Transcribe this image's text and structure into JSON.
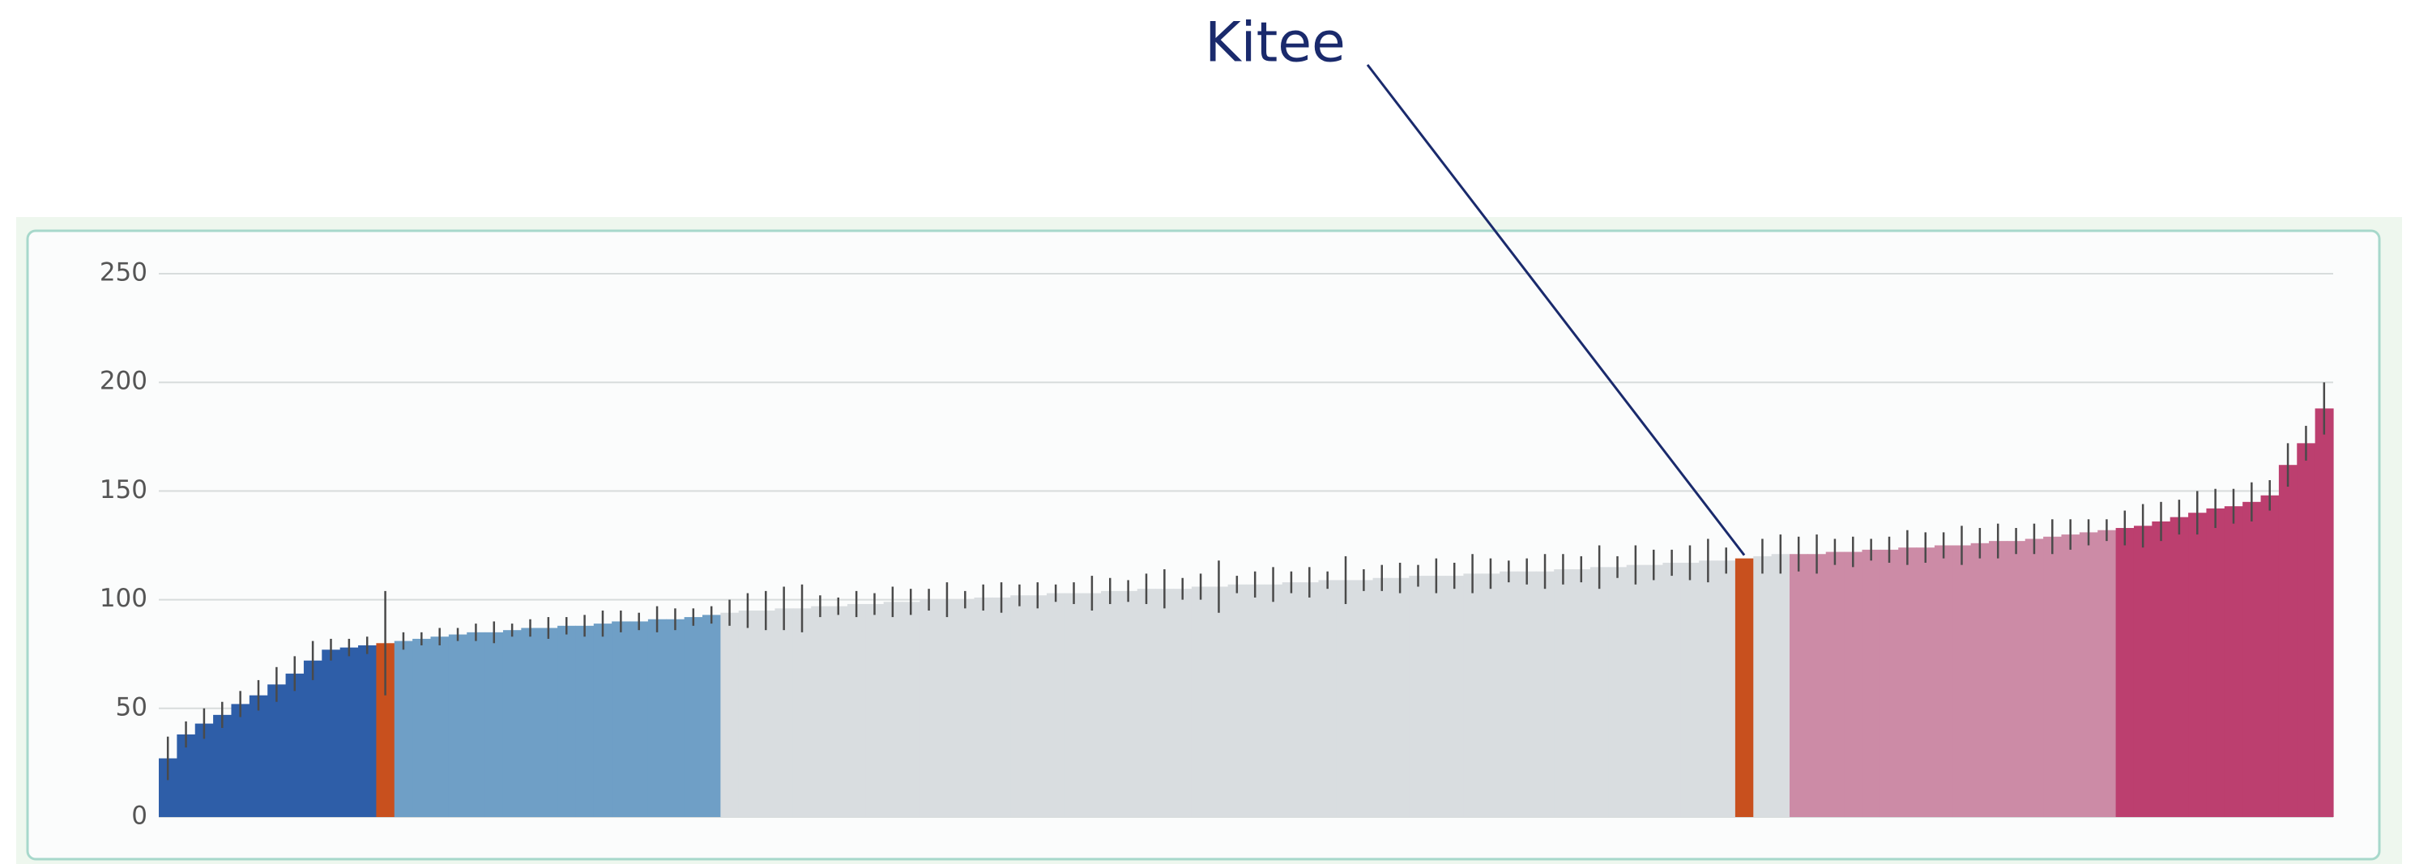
{
  "chart_data": {
    "type": "bar",
    "ylim": [
      0,
      250
    ],
    "yticks": [
      0,
      50,
      100,
      150,
      200,
      250
    ],
    "grid": true,
    "series": [
      {
        "color": "#2e5ea8",
        "values": [
          27,
          38,
          43,
          47,
          52,
          56,
          61,
          66,
          72,
          77,
          78,
          79
        ],
        "errors": [
          10,
          6,
          7,
          6,
          6,
          7,
          8,
          8,
          9,
          5,
          4,
          4
        ]
      },
      {
        "color": "#c8501e",
        "values": [
          80
        ],
        "errors": [
          24
        ]
      },
      {
        "color": "#6f9fc6",
        "values": [
          81,
          82,
          83,
          84,
          85,
          85,
          86,
          87,
          87,
          88,
          88,
          89,
          90,
          90,
          91,
          91,
          92,
          93
        ],
        "errors": [
          4,
          3,
          4,
          3,
          4,
          5,
          3,
          4,
          5,
          4,
          5,
          6,
          5,
          4,
          6,
          5,
          4,
          4
        ]
      },
      {
        "color": "#d9dde0",
        "values": [
          94,
          95,
          95,
          96,
          96,
          97,
          97,
          98,
          98,
          99,
          99,
          100,
          100,
          100,
          101,
          101,
          102,
          102,
          103,
          103,
          103,
          104,
          104,
          105,
          105,
          105,
          106,
          106,
          107,
          107,
          107,
          108,
          108,
          109,
          109,
          109,
          110,
          110,
          111,
          111,
          111,
          112,
          112,
          113,
          113,
          113,
          114,
          114,
          115,
          115,
          116,
          116,
          117,
          117,
          118,
          118
        ],
        "errors": [
          6,
          8,
          9,
          10,
          11,
          5,
          4,
          6,
          5,
          7,
          6,
          5,
          8,
          4,
          6,
          7,
          5,
          6,
          4,
          5,
          8,
          6,
          5,
          7,
          9,
          5,
          6,
          12,
          4,
          6,
          8,
          5,
          7,
          4,
          11,
          5,
          6,
          7,
          5,
          8,
          6,
          9,
          7,
          5,
          6,
          8,
          7,
          6,
          10,
          5,
          9,
          7,
          6,
          8,
          10,
          6
        ]
      },
      {
        "name": "Kitee",
        "color": "#c8501e",
        "values": [
          119
        ]
      },
      {
        "color": "#d9dde0",
        "values": [
          120,
          121
        ],
        "errors": [
          8,
          9
        ]
      },
      {
        "color": "#cc8ba6",
        "values": [
          121,
          121,
          122,
          122,
          123,
          123,
          124,
          124,
          125,
          125,
          126,
          127,
          127,
          128,
          129,
          130,
          131,
          132
        ],
        "errors": [
          8,
          9,
          6,
          7,
          5,
          6,
          8,
          7,
          6,
          9,
          7,
          8,
          6,
          7,
          8,
          7,
          6,
          5
        ]
      },
      {
        "color": "#bc3f6f",
        "values": [
          133,
          134,
          136,
          138,
          140,
          142,
          143,
          145,
          148,
          162,
          172,
          188
        ],
        "errors": [
          8,
          10,
          9,
          8,
          10,
          9,
          8,
          9,
          7,
          10,
          8,
          12
        ]
      }
    ]
  }
}
